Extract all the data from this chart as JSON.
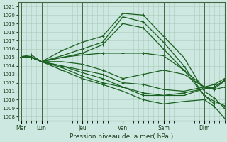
{
  "title": "Pression niveau de la mer( hPa )",
  "bg_color": "#cce8e0",
  "grid_color": "#aaccbb",
  "line_color": "#1a6020",
  "ylim": [
    1007.5,
    1021.5
  ],
  "yticks": [
    1008,
    1009,
    1010,
    1011,
    1012,
    1013,
    1014,
    1015,
    1016,
    1017,
    1018,
    1019,
    1020,
    1021
  ],
  "day_labels": [
    "Mer",
    "Lun",
    "Jeu",
    "Ven",
    "Sam",
    "Dim"
  ],
  "day_tick_pos": [
    0,
    1,
    3,
    5,
    7,
    9
  ],
  "xlim": [
    -0.15,
    10.0
  ],
  "lines": [
    [
      [
        0,
        1015.1
      ],
      [
        0.5,
        1015.3
      ],
      [
        1,
        1014.5
      ],
      [
        2,
        1015.8
      ],
      [
        3,
        1016.8
      ],
      [
        4,
        1017.5
      ],
      [
        5,
        1020.2
      ],
      [
        6,
        1020.0
      ],
      [
        7,
        1017.5
      ],
      [
        8,
        1015.0
      ],
      [
        9,
        1011.0
      ],
      [
        9.5,
        1010.2
      ],
      [
        10,
        1009.0
      ]
    ],
    [
      [
        0,
        1015.1
      ],
      [
        0.5,
        1015.1
      ],
      [
        1,
        1014.5
      ],
      [
        2,
        1015.2
      ],
      [
        3,
        1016.0
      ],
      [
        4,
        1016.8
      ],
      [
        5,
        1019.8
      ],
      [
        6,
        1019.2
      ],
      [
        7,
        1016.8
      ],
      [
        8,
        1014.0
      ],
      [
        9,
        1010.5
      ],
      [
        9.5,
        1009.8
      ],
      [
        10,
        1009.3
      ]
    ],
    [
      [
        0,
        1015.1
      ],
      [
        0.5,
        1015.0
      ],
      [
        1,
        1014.5
      ],
      [
        2,
        1015.0
      ],
      [
        3,
        1015.5
      ],
      [
        4,
        1016.5
      ],
      [
        5,
        1019.0
      ],
      [
        6,
        1018.5
      ],
      [
        7,
        1016.0
      ],
      [
        8,
        1013.5
      ],
      [
        9,
        1010.5
      ],
      [
        9.5,
        1009.5
      ],
      [
        10,
        1009.5
      ]
    ],
    [
      [
        0,
        1015.1
      ],
      [
        0.5,
        1015.0
      ],
      [
        1,
        1014.5
      ],
      [
        2,
        1015.0
      ],
      [
        3,
        1015.3
      ],
      [
        4,
        1015.5
      ],
      [
        5,
        1015.5
      ],
      [
        6,
        1015.5
      ],
      [
        7,
        1015.2
      ],
      [
        8,
        1013.5
      ],
      [
        9,
        1011.5
      ],
      [
        9.5,
        1011.2
      ],
      [
        10,
        1011.5
      ]
    ],
    [
      [
        0,
        1015.1
      ],
      [
        0.5,
        1015.0
      ],
      [
        1,
        1014.5
      ],
      [
        2,
        1014.5
      ],
      [
        3,
        1014.2
      ],
      [
        4,
        1013.5
      ],
      [
        5,
        1012.5
      ],
      [
        6,
        1013.0
      ],
      [
        7,
        1013.5
      ],
      [
        8,
        1013.0
      ],
      [
        9,
        1011.5
      ],
      [
        9.5,
        1011.3
      ],
      [
        10,
        1012.2
      ]
    ],
    [
      [
        0,
        1015.1
      ],
      [
        0.5,
        1015.0
      ],
      [
        1,
        1014.5
      ],
      [
        2,
        1014.0
      ],
      [
        3,
        1013.5
      ],
      [
        4,
        1013.0
      ],
      [
        5,
        1012.0
      ],
      [
        6,
        1011.8
      ],
      [
        7,
        1011.2
      ],
      [
        8,
        1011.0
      ],
      [
        9,
        1011.5
      ],
      [
        9.5,
        1011.8
      ],
      [
        10,
        1012.5
      ]
    ],
    [
      [
        0,
        1015.1
      ],
      [
        0.5,
        1015.0
      ],
      [
        1,
        1014.5
      ],
      [
        2,
        1014.0
      ],
      [
        3,
        1013.2
      ],
      [
        4,
        1012.5
      ],
      [
        5,
        1011.5
      ],
      [
        6,
        1010.8
      ],
      [
        7,
        1010.5
      ],
      [
        8,
        1010.8
      ],
      [
        9,
        1011.3
      ],
      [
        9.5,
        1011.5
      ],
      [
        10,
        1012.3
      ]
    ],
    [
      [
        0,
        1015.1
      ],
      [
        0.5,
        1015.0
      ],
      [
        1,
        1014.5
      ],
      [
        2,
        1013.8
      ],
      [
        3,
        1012.8
      ],
      [
        4,
        1012.0
      ],
      [
        5,
        1011.5
      ],
      [
        6,
        1010.5
      ],
      [
        7,
        1010.5
      ],
      [
        8,
        1010.5
      ],
      [
        9,
        1011.3
      ],
      [
        9.5,
        1011.5
      ],
      [
        10,
        1012.3
      ]
    ],
    [
      [
        0,
        1015.1
      ],
      [
        0.5,
        1015.0
      ],
      [
        1,
        1014.5
      ],
      [
        2,
        1013.5
      ],
      [
        3,
        1012.5
      ],
      [
        4,
        1011.8
      ],
      [
        5,
        1011.0
      ],
      [
        6,
        1010.0
      ],
      [
        7,
        1009.5
      ],
      [
        8,
        1009.8
      ],
      [
        9,
        1010.0
      ],
      [
        9.5,
        1009.2
      ],
      [
        10,
        1007.8
      ]
    ]
  ]
}
